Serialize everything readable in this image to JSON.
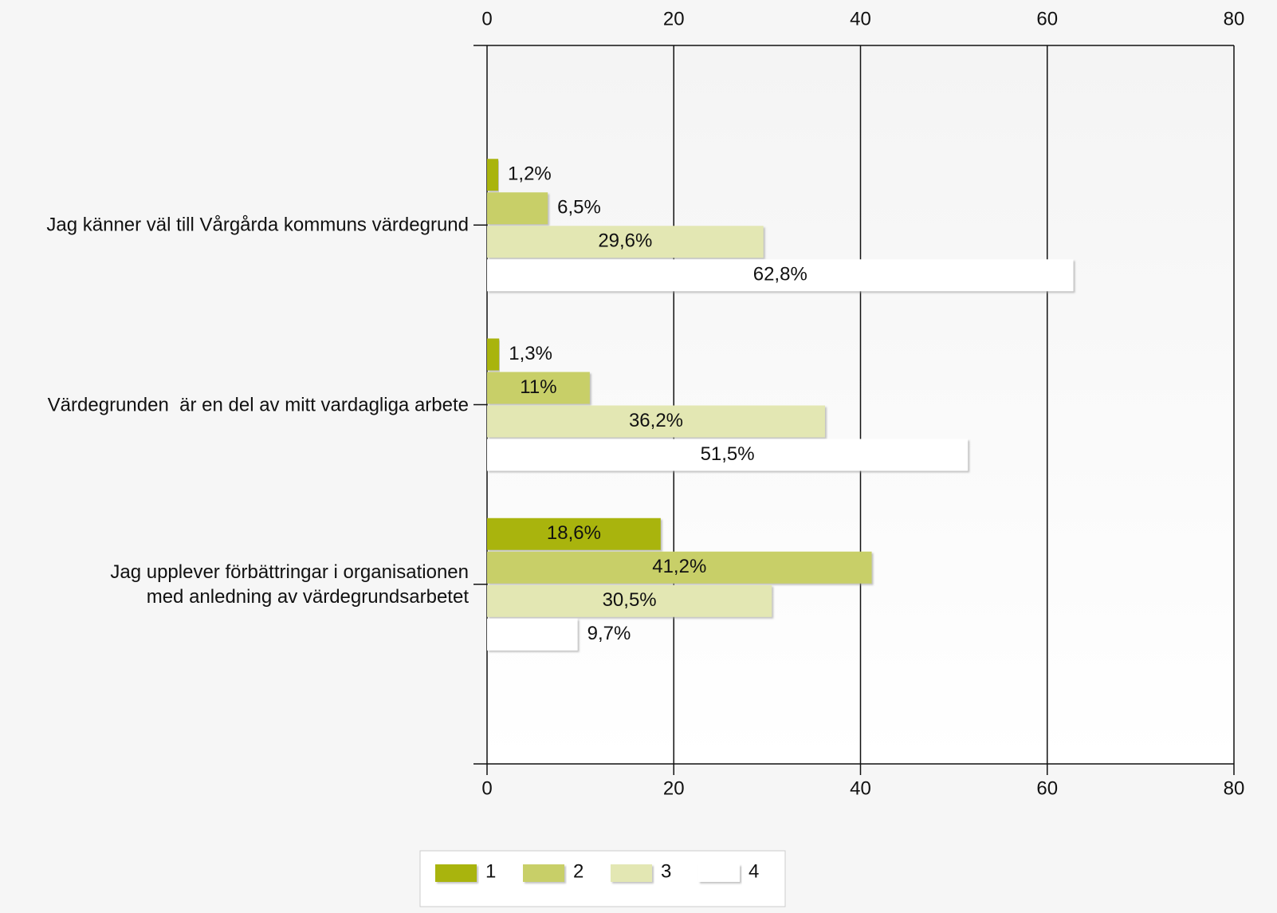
{
  "chart_data": {
    "type": "hbar",
    "categories": [
      "Jag känner väl till Vårgårda kommuns värdegrund",
      "Värdegrunden  är en del av mitt vardagliga arbete",
      "Jag upplever förbättringar i organisationen\nmed anledning av värdegrundsarbetet"
    ],
    "series": [
      {
        "name": "1",
        "color": "#a9b40c",
        "values": [
          1.2,
          1.3,
          18.6
        ],
        "value_labels": [
          "1,2%",
          "1,3%",
          "18,6%"
        ]
      },
      {
        "name": "2",
        "color": "#c8cf68",
        "values": [
          6.5,
          11,
          41.2
        ],
        "value_labels": [
          "6,5%",
          "11%",
          "41,2%"
        ]
      },
      {
        "name": "3",
        "color": "#e3e7b3",
        "values": [
          29.6,
          36.2,
          30.5
        ],
        "value_labels": [
          "29,6%",
          "36,2%",
          "30,5%"
        ]
      },
      {
        "name": "4",
        "color": "#ffffff",
        "values": [
          62.8,
          51.5,
          9.7
        ],
        "value_labels": [
          "62,8%",
          "51,5%",
          "9,7%"
        ]
      }
    ],
    "xlim": [
      0,
      80
    ],
    "xticks": [
      0,
      20,
      40,
      60,
      80
    ],
    "grid": true,
    "legend": "bottom"
  }
}
